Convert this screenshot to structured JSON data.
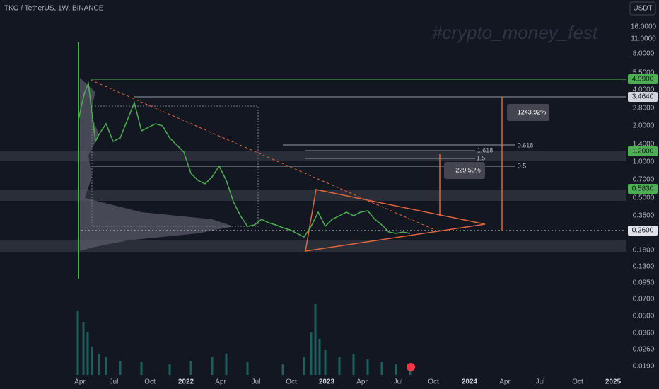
{
  "header": {
    "symbol": "TKO / TetherUS, 1W, BINANCE",
    "currency": "USDT",
    "watermark": "#crypto_money_fest"
  },
  "price_axis": [
    "16.0000",
    "11.0000",
    "8.0000",
    "5.5000",
    "4.0000",
    "2.8000",
    "2.0000",
    "1.4000",
    "1.0000",
    "0.7000",
    "0.5000",
    "0.3500",
    "0.1800",
    "0.1300",
    "0.0950",
    "0.0700",
    "0.0500",
    "0.0360",
    "0.0260",
    "0.0190"
  ],
  "time_axis": [
    "Apr",
    "Jul",
    "Oct",
    "2022",
    "Apr",
    "Jul",
    "Oct",
    "2023",
    "Apr",
    "Jul",
    "Oct",
    "2024",
    "Apr",
    "Jul",
    "Oct",
    "2025"
  ],
  "price_tags": [
    {
      "label": "4.9900",
      "color": "#4caf50"
    },
    {
      "label": "3.4640",
      "color": "#d1d4dc"
    },
    {
      "label": "1.2000",
      "color": "#4caf50"
    },
    {
      "label": "0.5830",
      "color": "#4caf50"
    },
    {
      "label": "0.2600",
      "color": "#e0e3eb"
    }
  ],
  "fib_levels": [
    "0.618",
    "1.618",
    "1.5",
    "0.5"
  ],
  "measures": [
    "1243.92%",
    "229.50%"
  ]
}
